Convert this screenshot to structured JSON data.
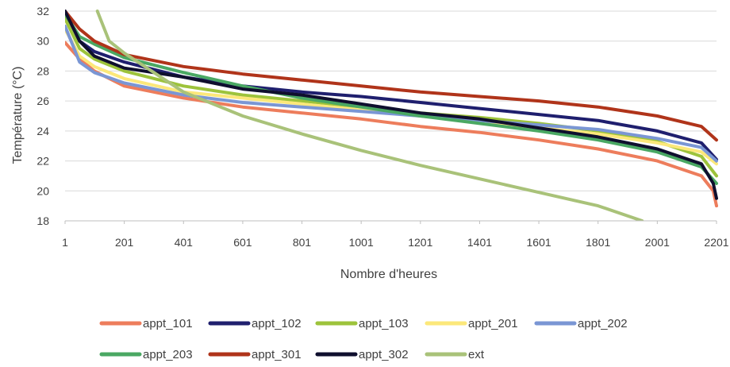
{
  "chart_data": {
    "type": "line",
    "title": "",
    "xlabel": "Nombre d'heures",
    "ylabel": "Température (°C)",
    "xlim": [
      1,
      2201
    ],
    "ylim": [
      18,
      32
    ],
    "x_ticks": [
      "1",
      "201",
      "401",
      "601",
      "801",
      "1001",
      "1201",
      "1401",
      "1601",
      "1801",
      "2001",
      "2201"
    ],
    "y_ticks": [
      "18",
      "20",
      "22",
      "24",
      "26",
      "28",
      "30",
      "32"
    ],
    "grid": "horizontal",
    "legend_position": "bottom",
    "series": [
      {
        "name": "appt_101",
        "color": "#ed7d5c",
        "points": [
          [
            1,
            29.9
          ],
          [
            50,
            28.8
          ],
          [
            100,
            28.0
          ],
          [
            201,
            27.0
          ],
          [
            401,
            26.2
          ],
          [
            601,
            25.6
          ],
          [
            801,
            25.2
          ],
          [
            1001,
            24.8
          ],
          [
            1201,
            24.3
          ],
          [
            1401,
            23.9
          ],
          [
            1601,
            23.4
          ],
          [
            1801,
            22.8
          ],
          [
            2001,
            22.0
          ],
          [
            2150,
            21.0
          ],
          [
            2190,
            20.0
          ],
          [
            2201,
            19.0
          ]
        ]
      },
      {
        "name": "appt_102",
        "color": "#1f1f6e",
        "points": [
          [
            1,
            32.0
          ],
          [
            50,
            30.0
          ],
          [
            100,
            29.3
          ],
          [
            201,
            28.6
          ],
          [
            401,
            27.6
          ],
          [
            601,
            27.0
          ],
          [
            801,
            26.6
          ],
          [
            1001,
            26.3
          ],
          [
            1201,
            25.9
          ],
          [
            1401,
            25.5
          ],
          [
            1601,
            25.1
          ],
          [
            1801,
            24.7
          ],
          [
            2001,
            24.0
          ],
          [
            2150,
            23.2
          ],
          [
            2201,
            22.1
          ]
        ]
      },
      {
        "name": "appt_103",
        "color": "#9dc33b",
        "points": [
          [
            1,
            31.5
          ],
          [
            50,
            29.5
          ],
          [
            100,
            28.8
          ],
          [
            201,
            28.0
          ],
          [
            401,
            27.0
          ],
          [
            601,
            26.4
          ],
          [
            801,
            26.0
          ],
          [
            1001,
            25.6
          ],
          [
            1201,
            25.2
          ],
          [
            1401,
            24.9
          ],
          [
            1601,
            24.5
          ],
          [
            1801,
            24.0
          ],
          [
            2001,
            23.3
          ],
          [
            2150,
            22.3
          ],
          [
            2201,
            21.0
          ]
        ]
      },
      {
        "name": "appt_201",
        "color": "#fce87a",
        "points": [
          [
            1,
            30.8
          ],
          [
            50,
            29.0
          ],
          [
            100,
            28.3
          ],
          [
            201,
            27.5
          ],
          [
            401,
            26.6
          ],
          [
            601,
            26.2
          ],
          [
            801,
            25.8
          ],
          [
            1001,
            25.4
          ],
          [
            1201,
            25.0
          ],
          [
            1401,
            24.6
          ],
          [
            1601,
            24.2
          ],
          [
            1801,
            23.8
          ],
          [
            2001,
            23.2
          ],
          [
            2150,
            22.6
          ],
          [
            2201,
            21.8
          ]
        ]
      },
      {
        "name": "appt_202",
        "color": "#7a96d4",
        "points": [
          [
            1,
            31.0
          ],
          [
            50,
            28.6
          ],
          [
            100,
            27.9
          ],
          [
            201,
            27.2
          ],
          [
            401,
            26.4
          ],
          [
            601,
            25.9
          ],
          [
            801,
            25.6
          ],
          [
            1001,
            25.3
          ],
          [
            1201,
            25.0
          ],
          [
            1401,
            24.7
          ],
          [
            1601,
            24.4
          ],
          [
            1801,
            24.1
          ],
          [
            2001,
            23.5
          ],
          [
            2150,
            22.9
          ],
          [
            2201,
            22.0
          ]
        ]
      },
      {
        "name": "appt_203",
        "color": "#4aa863",
        "points": [
          [
            1,
            31.8
          ],
          [
            50,
            30.3
          ],
          [
            100,
            29.8
          ],
          [
            201,
            28.9
          ],
          [
            401,
            27.9
          ],
          [
            601,
            27.0
          ],
          [
            801,
            26.2
          ],
          [
            1001,
            25.6
          ],
          [
            1201,
            25.0
          ],
          [
            1401,
            24.5
          ],
          [
            1601,
            24.0
          ],
          [
            1801,
            23.4
          ],
          [
            2001,
            22.6
          ],
          [
            2150,
            21.6
          ],
          [
            2201,
            20.5
          ]
        ]
      },
      {
        "name": "appt_301",
        "color": "#b0341a",
        "points": [
          [
            1,
            32.0
          ],
          [
            50,
            30.8
          ],
          [
            100,
            30.0
          ],
          [
            201,
            29.1
          ],
          [
            401,
            28.3
          ],
          [
            601,
            27.8
          ],
          [
            801,
            27.4
          ],
          [
            1001,
            27.0
          ],
          [
            1201,
            26.6
          ],
          [
            1401,
            26.3
          ],
          [
            1601,
            26.0
          ],
          [
            1801,
            25.6
          ],
          [
            2001,
            25.0
          ],
          [
            2150,
            24.3
          ],
          [
            2201,
            23.4
          ]
        ]
      },
      {
        "name": "appt_302",
        "color": "#0f0f2e",
        "points": [
          [
            1,
            32.0
          ],
          [
            50,
            30.0
          ],
          [
            100,
            29.0
          ],
          [
            201,
            28.2
          ],
          [
            401,
            27.6
          ],
          [
            601,
            26.8
          ],
          [
            801,
            26.4
          ],
          [
            1001,
            25.8
          ],
          [
            1201,
            25.2
          ],
          [
            1401,
            24.8
          ],
          [
            1601,
            24.2
          ],
          [
            1801,
            23.6
          ],
          [
            2001,
            22.8
          ],
          [
            2150,
            21.8
          ],
          [
            2190,
            20.5
          ],
          [
            2201,
            19.5
          ]
        ]
      },
      {
        "name": "ext",
        "color": "#a9c279",
        "points": [
          [
            110,
            32.0
          ],
          [
            150,
            30.0
          ],
          [
            201,
            29.2
          ],
          [
            301,
            27.9
          ],
          [
            401,
            26.6
          ],
          [
            601,
            25.0
          ],
          [
            801,
            23.8
          ],
          [
            1001,
            22.7
          ],
          [
            1201,
            21.7
          ],
          [
            1401,
            20.8
          ],
          [
            1601,
            19.9
          ],
          [
            1801,
            19.0
          ],
          [
            1950,
            18.0
          ]
        ]
      }
    ]
  }
}
